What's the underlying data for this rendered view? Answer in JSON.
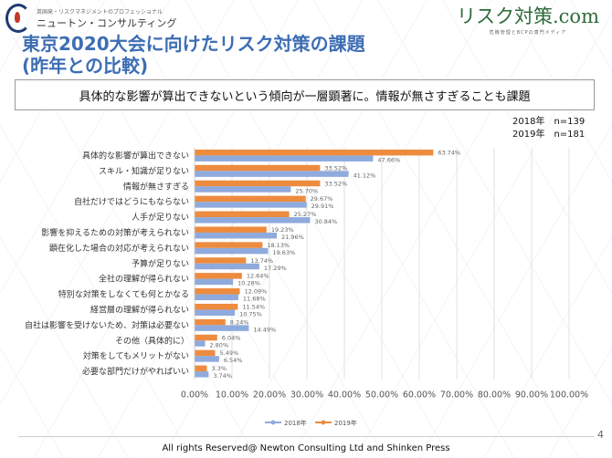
{
  "header": {
    "left_logo_sub": "英国発・リスクマネジメントのプロフェッショナル",
    "left_logo": "ニュートン・コンサルティング",
    "right_logo": "リスク対策.com",
    "right_logo_sub": "危機管理とBCPの専門メディア",
    "title_line1": "東京2020大会に向けたリスク対策の課題",
    "title_line2": "(昨年との比較)",
    "subtitle": "具体的な影響が算出できないという傾向が一層顕著に。情報が無さすぎることも課題",
    "n_2018": "2018年　n=139",
    "n_2019": "2019年　n=181"
  },
  "chart_data": {
    "type": "bar",
    "orientation": "horizontal",
    "categories": [
      "具体的な影響が算出できない",
      "スキル・知識が足りない",
      "情報が無さすぎる",
      "自社だけではどうにもならない",
      "人手が足りない",
      "影響を抑えるための対策が考えられない",
      "顕在化した場合の対応が考えられない",
      "予算が足りない",
      "全社の理解が得られない",
      "特別な対策をしなくても何とかなる",
      "経営層の理解が得られない",
      "自社は影響を受けないため、対策は必要ない",
      "その他（具体的に）",
      "対策をしてもメリットがない",
      "必要な部門だけがやればいい"
    ],
    "series": [
      {
        "name": "2018年",
        "color": "#8faadc",
        "values": [
          47.66,
          41.12,
          25.7,
          29.91,
          30.84,
          21.96,
          19.63,
          17.29,
          10.28,
          11.68,
          10.75,
          14.49,
          2.8,
          6.54,
          3.74
        ],
        "labels": [
          "47.66%",
          "41.12%",
          "25.70%",
          "29.91%",
          "30.84%",
          "21.96%",
          "19.63%",
          "17.29%",
          "10.28%",
          "11.68%",
          "10.75%",
          "14.49%",
          "2.80%",
          "6.54%",
          "3.74%"
        ]
      },
      {
        "name": "2019年",
        "color": "#ed8b3e",
        "values": [
          63.74,
          33.52,
          33.52,
          29.67,
          25.27,
          19.23,
          18.13,
          13.74,
          12.64,
          12.09,
          11.54,
          8.24,
          6.04,
          5.49,
          3.3
        ],
        "labels": [
          "63.74%",
          "33.52%",
          "33.52%",
          "29.67%",
          "25.27%",
          "19.23%",
          "18.13%",
          "13.74%",
          "12.64%",
          "12.09%",
          "11.54%",
          "8.24%",
          "6.04%",
          "5.49%",
          "3.3%"
        ]
      }
    ],
    "xlim": [
      0,
      100
    ],
    "xticks": [
      "0.00%",
      "10.00%",
      "20.00%",
      "30.00%",
      "40.00%",
      "50.00%",
      "60.00%",
      "70.00%",
      "80.00%",
      "90.00%",
      "100.00%"
    ],
    "grid": true,
    "legend": "bottom"
  },
  "footer": {
    "text": "All rights Reserved@ Newton Consulting Ltd and Shinken Press",
    "page": "4"
  }
}
